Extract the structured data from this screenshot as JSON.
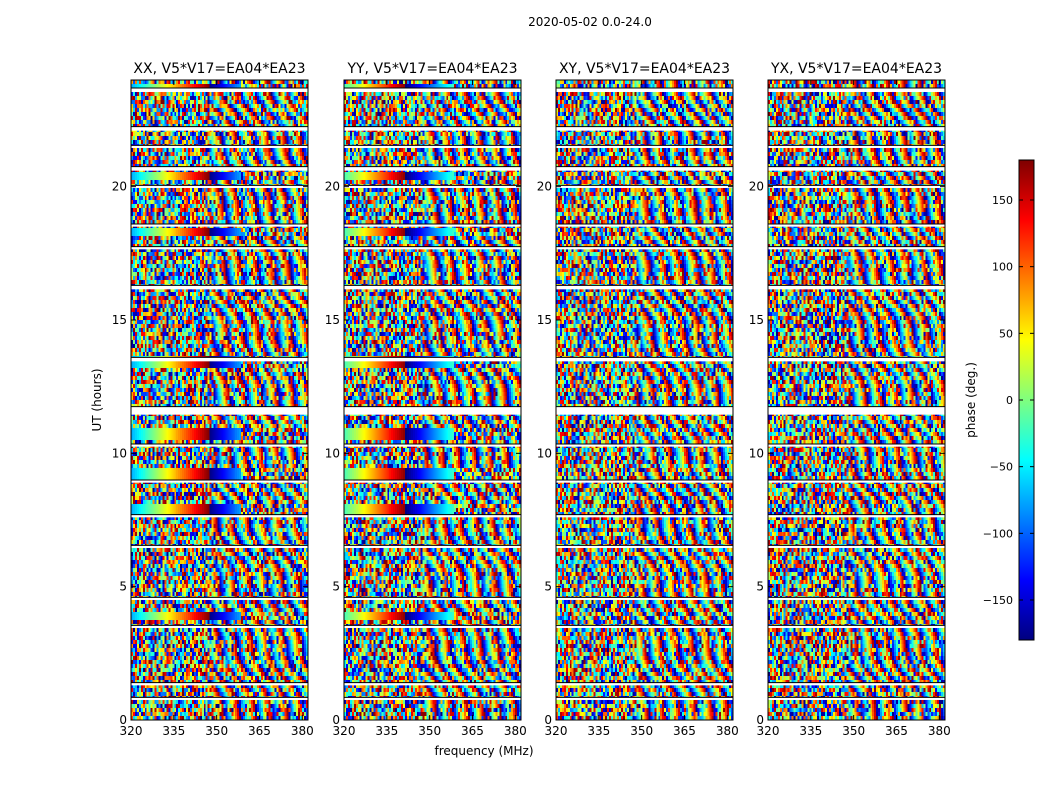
{
  "chart_data": {
    "type": "heatmap",
    "suptitle": "2020-05-02 0.0-24.0",
    "xlabel": "frequency (MHz)",
    "ylabel": "UT (hours)",
    "xlim": [
      320,
      382
    ],
    "ylim": [
      0,
      24
    ],
    "xticks": [
      320,
      335,
      350,
      365,
      380
    ],
    "yticks": [
      0,
      5,
      10,
      15,
      20
    ],
    "colorbar": {
      "label": "phase (deg.)",
      "range": [
        -180,
        180
      ],
      "ticks": [
        150,
        100,
        50,
        0,
        -50,
        -100,
        -150
      ],
      "tick_labels": [
        "150",
        "100",
        "50",
        "0",
        "−50",
        "−100",
        "−150"
      ],
      "colormap": [
        "#00007f",
        "#0000ff",
        "#007fff",
        "#00ffff",
        "#7fff7f",
        "#ffff00",
        "#ff7f00",
        "#ff0000",
        "#7f0000"
      ]
    },
    "panels": [
      {
        "title": "XX, V5*V17=EA04*EA23",
        "show_ylabels": true
      },
      {
        "title": "YY, V5*V17=EA04*EA23",
        "show_ylabels": true
      },
      {
        "title": "XY, V5*V17=EA04*EA23",
        "show_ylabels": true
      },
      {
        "title": "YX, V5*V17=EA04*EA23",
        "show_ylabels": true
      }
    ],
    "flagged_ut_bands": [
      [
        23.55,
        23.7
      ],
      [
        22.1,
        22.25
      ],
      [
        21.45,
        21.55
      ],
      [
        20.6,
        20.75
      ],
      [
        19.95,
        20.05
      ],
      [
        18.5,
        18.6
      ],
      [
        17.65,
        17.75
      ],
      [
        16.15,
        16.3
      ],
      [
        13.45,
        13.6
      ],
      [
        11.45,
        11.75
      ],
      [
        10.25,
        10.35
      ],
      [
        8.9,
        9.0
      ],
      [
        7.6,
        7.7
      ],
      [
        6.45,
        6.55
      ],
      [
        4.5,
        4.6
      ],
      [
        3.45,
        3.55
      ],
      [
        1.3,
        1.4
      ],
      [
        0.75,
        0.85
      ]
    ],
    "coherent_phase_tracks_ut": [
      23.7,
      20.4,
      18.3,
      13.4,
      10.7,
      9.2,
      7.9,
      3.9
    ]
  }
}
